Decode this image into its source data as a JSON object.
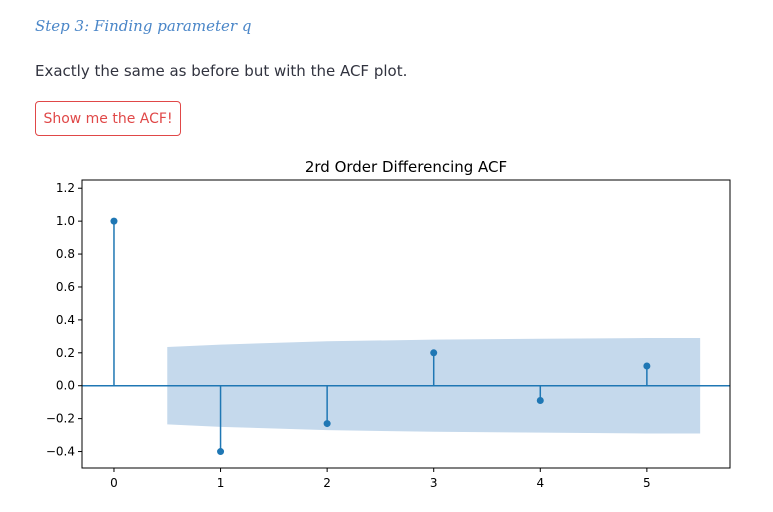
{
  "step": {
    "title": "Step 3: Finding parameter q"
  },
  "intro": {
    "text": "Exactly the same as before but with the ACF plot."
  },
  "button": {
    "label": "Show me the ACF!"
  },
  "colors": {
    "accent_red": "#e04848",
    "heading_blue": "#4a86c8",
    "series": "#1f77b4",
    "confidence_band": "#c5d9ec"
  },
  "chart_data": {
    "type": "scatter",
    "style": "stem",
    "title": "2rd Order Differencing ACF",
    "xlabel": "",
    "ylabel": "",
    "x": [
      0,
      1,
      2,
      3,
      4,
      5
    ],
    "y": [
      1.0,
      -0.4,
      -0.23,
      0.2,
      -0.09,
      0.12
    ],
    "xlim": [
      -0.3,
      5.78
    ],
    "ylim": [
      -0.5,
      1.25
    ],
    "x_ticks": [
      "0",
      "1",
      "2",
      "3",
      "4",
      "5"
    ],
    "y_ticks": [
      "1.2",
      "1.0",
      "0.8",
      "0.6",
      "0.4",
      "0.2",
      "0.0",
      "−0.2",
      "−0.4"
    ],
    "confidence_band": {
      "x": [
        0.5,
        1,
        2,
        3,
        4,
        5,
        5.5
      ],
      "upper": [
        0.235,
        0.25,
        0.27,
        0.28,
        0.285,
        0.29,
        0.29
      ],
      "lower": [
        -0.235,
        -0.25,
        -0.27,
        -0.28,
        -0.285,
        -0.29,
        -0.29
      ]
    },
    "grid": false,
    "legend": "none"
  }
}
